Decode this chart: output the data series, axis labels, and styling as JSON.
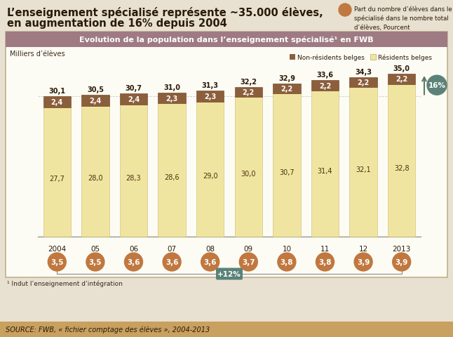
{
  "title_line1": "L’enseignement spécialisé représente ~35.000 élèves,",
  "title_line2": "en augmentation de 16% depuis 2004",
  "legend_note": "Part du nombre d’élèves dans le\nspécialisé dans le nombre total\nd’élèves, Pourcent",
  "chart_title": "Evolution de la population dans l’enseignement spécialisé¹ en FWB",
  "ylabel": "Milliers d’élèves",
  "years": [
    "2004",
    "05",
    "06",
    "07",
    "08",
    "09",
    "10",
    "11",
    "12",
    "2013"
  ],
  "residents": [
    27.7,
    28.0,
    28.3,
    28.6,
    29.0,
    30.0,
    30.7,
    31.4,
    32.1,
    32.8
  ],
  "non_residents": [
    2.4,
    2.4,
    2.4,
    2.3,
    2.3,
    2.2,
    2.2,
    2.2,
    2.2,
    2.2
  ],
  "totals": [
    30.1,
    30.5,
    30.7,
    31.0,
    31.3,
    32.2,
    32.9,
    33.6,
    34.3,
    35.0
  ],
  "percentages": [
    "3,5",
    "3,5",
    "3,6",
    "3,6",
    "3,6",
    "3,7",
    "3,8",
    "3,8",
    "3,9",
    "3,9"
  ],
  "residents_labels": [
    "27,7",
    "28,0",
    "28,3",
    "28,6",
    "29,0",
    "30,0",
    "30,7",
    "31,4",
    "32,1",
    "32,8"
  ],
  "nonres_labels": [
    "2,4",
    "2,4",
    "2,4",
    "2,3",
    "2,3",
    "2,2",
    "2,2",
    "2,2",
    "2,2",
    "2,2"
  ],
  "total_labels": [
    "30,1",
    "30,5",
    "30,7",
    "31,0",
    "31,3",
    "32,2",
    "32,9",
    "33,6",
    "34,3",
    "35,0"
  ],
  "color_residents": "#F0E5A0",
  "color_non_residents": "#8B5E3C",
  "color_chart_bg": "#FDFCF4",
  "color_chart_border": "#C0B090",
  "color_title_bg": "#9E7A82",
  "color_title_text": "#FFFFFF",
  "color_percent_circle": "#C07840",
  "color_16pct_circle": "#5A8278",
  "color_12pct_bg": "#5A8278",
  "color_source_bg": "#C8A060",
  "color_outer_bg": "#E8E0D0",
  "footnote": "¹ Indut l’enseignement d’intégration",
  "source": "SOURCE: FWB, « fichier comptage des élèves », 2004-2013"
}
